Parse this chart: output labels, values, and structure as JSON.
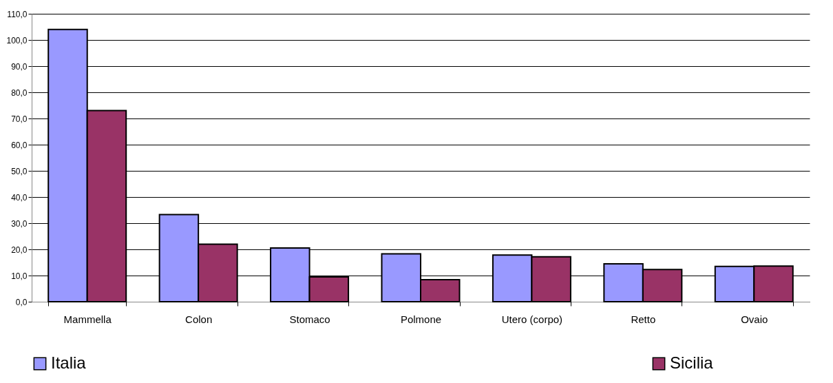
{
  "chart_data": {
    "type": "bar",
    "categories": [
      "Mammella",
      "Colon",
      "Stomaco",
      "Polmone",
      "Utero (corpo)",
      "Retto",
      "Ovaio"
    ],
    "series": [
      {
        "name": "Italia",
        "color": "#9999ff",
        "values": [
          104.0,
          33.3,
          20.5,
          18.3,
          17.8,
          14.5,
          13.5
        ]
      },
      {
        "name": "Sicilia",
        "color": "#993366",
        "values": [
          73.0,
          22.0,
          9.5,
          8.4,
          17.2,
          12.3,
          13.6
        ]
      }
    ],
    "ylim": [
      0,
      110
    ],
    "yticks": [
      {
        "value": 0,
        "label": "0,0"
      },
      {
        "value": 10,
        "label": "10,0"
      },
      {
        "value": 20,
        "label": "20,0"
      },
      {
        "value": 30,
        "label": "30,0"
      },
      {
        "value": 40,
        "label": "40,0"
      },
      {
        "value": 50,
        "label": "50,0"
      },
      {
        "value": 60,
        "label": "60,0"
      },
      {
        "value": 70,
        "label": "70,0"
      },
      {
        "value": 80,
        "label": "80,0"
      },
      {
        "value": 90,
        "label": "90,0"
      },
      {
        "value": 100,
        "label": "100,0"
      },
      {
        "value": 110,
        "label": "110,0"
      }
    ],
    "grid": "y",
    "legend": "bottom"
  }
}
